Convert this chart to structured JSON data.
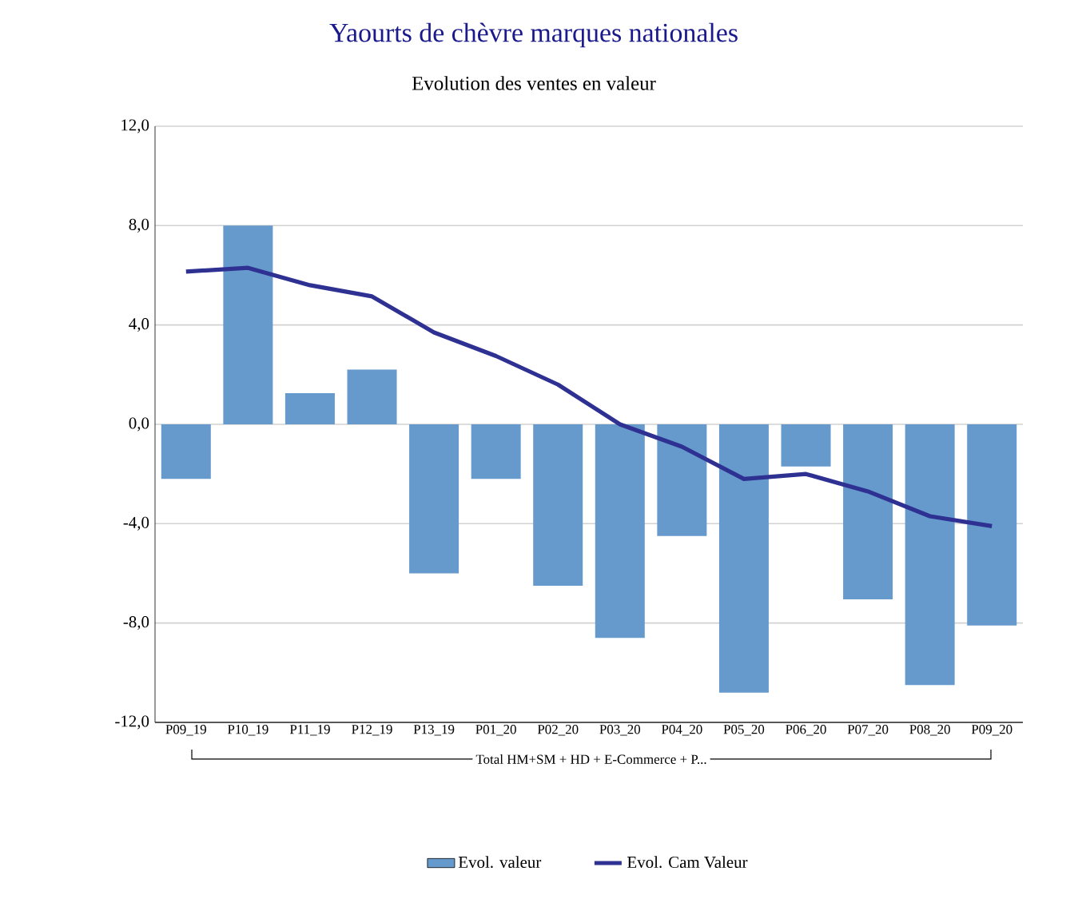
{
  "chart_data": {
    "type": "bar",
    "title": "Yaourts de chèvre marques nationales",
    "subtitle": "Evolution des ventes en valeur",
    "xlabel": "Total HM+SM + HD + E-Commerce + P...",
    "categories": [
      "P09_19",
      "P10_19",
      "P11_19",
      "P12_19",
      "P13_19",
      "P01_20",
      "P02_20",
      "P03_20",
      "P04_20",
      "P05_20",
      "P06_20",
      "P07_20",
      "P08_20",
      "P09_20"
    ],
    "series": [
      {
        "name": "Evol.  valeur",
        "color": "#6699cc",
        "values": [
          -2.2,
          8.0,
          1.25,
          2.2,
          -6.0,
          -2.2,
          -6.5,
          -8.6,
          -4.5,
          -10.8,
          -1.7,
          -7.05,
          -10.5,
          -8.1
        ]
      },
      {
        "name": "Evol. Cam Valeur",
        "type": "line",
        "color": "#2e3192",
        "values": [
          6.15,
          6.3,
          5.6,
          5.15,
          3.7,
          2.75,
          1.6,
          0.0,
          -0.9,
          -2.2,
          -2.0,
          -2.7,
          -3.7,
          -4.1
        ]
      }
    ],
    "ylim": [
      -12,
      12
    ],
    "yticks": [
      {
        "value": -12,
        "label": "-12,0"
      },
      {
        "value": -8,
        "label": "-8,0"
      },
      {
        "value": -4,
        "label": "-4,0"
      },
      {
        "value": 0,
        "label": "0,0"
      },
      {
        "value": 4,
        "label": "4,0"
      },
      {
        "value": 8,
        "label": "8,0"
      },
      {
        "value": 12,
        "label": "12,0"
      }
    ],
    "grid": "y",
    "legend": "bottom",
    "marker": "none",
    "line_style": "solid"
  }
}
